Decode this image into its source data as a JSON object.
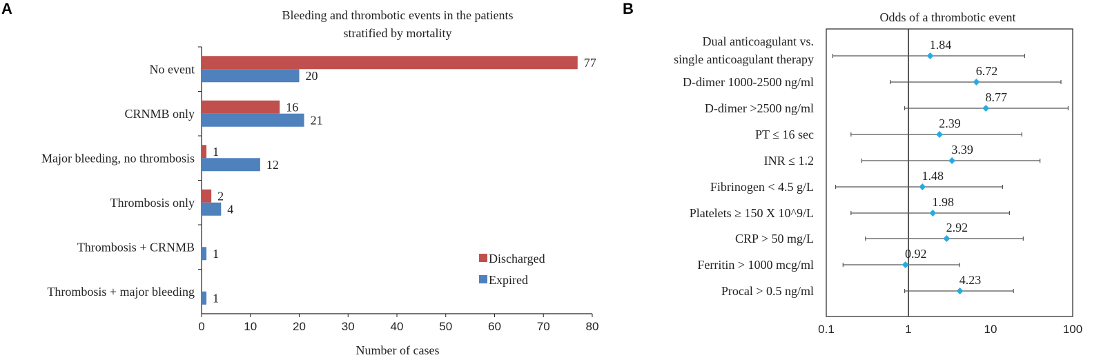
{
  "panels": {
    "a": {
      "label": "A"
    },
    "b": {
      "label": "B"
    }
  },
  "chart_data": [
    {
      "type": "bar",
      "orientation": "horizontal",
      "title_lines": [
        "Bleeding and thrombotic events in the patients",
        "stratified by mortality"
      ],
      "categories": [
        "No event",
        "CRNMB only",
        "Major bleeding, no thrombosis",
        "Thrombosis only",
        "Thrombosis + CRNMB",
        "Thrombosis + major bleeding"
      ],
      "series": [
        {
          "name": "Discharged",
          "color": "#C0504D",
          "values": [
            77,
            16,
            1,
            2,
            0,
            0
          ],
          "labels": [
            "77",
            "16",
            "1",
            "2",
            "",
            ""
          ]
        },
        {
          "name": "Expired",
          "color": "#4F81BD",
          "values": [
            20,
            21,
            12,
            4,
            1,
            1
          ],
          "labels": [
            "20",
            "21",
            "12",
            "4",
            "1",
            "1"
          ]
        }
      ],
      "xlabel": "Number of cases",
      "xlim": [
        0,
        80
      ],
      "xticks": [
        "0",
        "10",
        "20",
        "30",
        "40",
        "50",
        "60",
        "70",
        "80"
      ],
      "legend_position": "bottom-right",
      "grid": false
    },
    {
      "type": "scatter",
      "subtype": "forest-plot",
      "title": "Odds of a thrombotic event",
      "x_scale": "log",
      "xlim": [
        0.1,
        100
      ],
      "xticks": [
        "0.1",
        "1",
        "10",
        "100"
      ],
      "reference_line": 1,
      "marker_color": "#29ABE2",
      "items": [
        {
          "label_lines": [
            "Dual anticoagulant vs.",
            "single anticoagulant therapy"
          ],
          "or": 1.84,
          "or_label": "1.84",
          "ci": [
            0.12,
            26
          ]
        },
        {
          "label_lines": [
            "D-dimer 1000-2500 ng/ml"
          ],
          "or": 6.72,
          "or_label": "6.72",
          "ci": [
            0.6,
            72
          ]
        },
        {
          "label_lines": [
            "D-dimer >2500 ng/ml"
          ],
          "or": 8.77,
          "or_label": "8.77",
          "ci": [
            0.9,
            88
          ]
        },
        {
          "label_lines": [
            "PT ≤ 16 sec"
          ],
          "or": 2.39,
          "or_label": "2.39",
          "ci": [
            0.2,
            24
          ]
        },
        {
          "label_lines": [
            "INR ≤ 1.2"
          ],
          "or": 3.39,
          "or_label": "3.39",
          "ci": [
            0.27,
            40
          ]
        },
        {
          "label_lines": [
            "Fibrinogen < 4.5 g/L"
          ],
          "or": 1.48,
          "or_label": "1.48",
          "ci": [
            0.13,
            14
          ]
        },
        {
          "label_lines": [
            "Platelets ≥ 150 X 10^9/L"
          ],
          "or": 1.98,
          "or_label": "1.98",
          "ci": [
            0.2,
            17
          ]
        },
        {
          "label_lines": [
            "CRP > 50 mg/L"
          ],
          "or": 2.92,
          "or_label": "2.92",
          "ci": [
            0.3,
            25
          ]
        },
        {
          "label_lines": [
            "Ferritin > 1000 mcg/ml"
          ],
          "or": 0.92,
          "or_label": "0.92",
          "ci": [
            0.16,
            4.2
          ]
        },
        {
          "label_lines": [
            "Procal > 0.5 ng/ml"
          ],
          "or": 4.23,
          "or_label": "4.23",
          "ci": [
            0.9,
            19
          ]
        }
      ]
    }
  ]
}
